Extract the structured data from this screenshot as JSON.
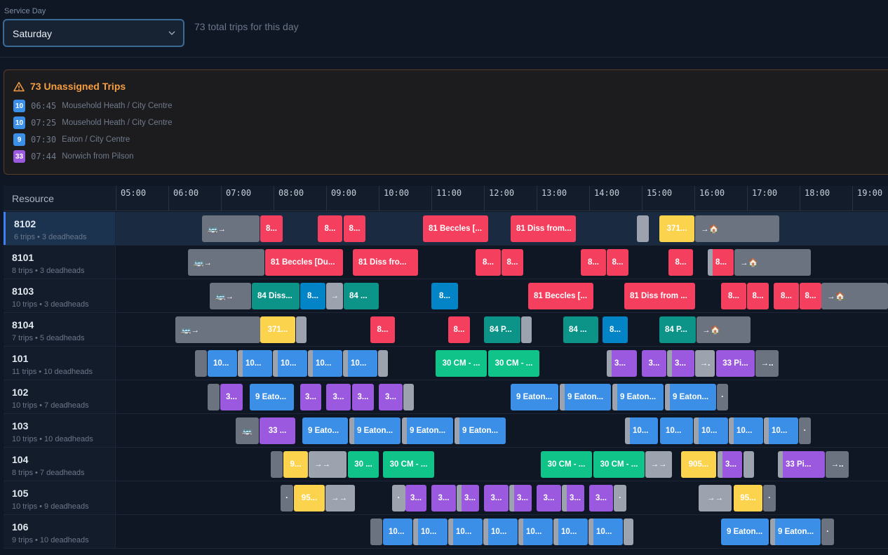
{
  "service_day": {
    "label": "Service Day",
    "value": "Saturday"
  },
  "total_trips_text": "73 total trips for this day",
  "unassigned": {
    "title": "73 Unassigned Trips",
    "trips": [
      {
        "route": "10",
        "color": "#3b8fe6",
        "time": "06:45",
        "name": "Mousehold Heath / City Centre"
      },
      {
        "route": "10",
        "color": "#3b8fe6",
        "time": "07:25",
        "name": "Mousehold Heath / City Centre"
      },
      {
        "route": "9",
        "color": "#3b8fe6",
        "time": "07:30",
        "name": "Eaton / City Centre"
      },
      {
        "route": "33",
        "color": "#9b59e0",
        "time": "07:44",
        "name": "Norwich from Pilson"
      }
    ]
  },
  "grid": {
    "resource_header": "Resource",
    "hours": [
      "05:00",
      "06:00",
      "07:00",
      "08:00",
      "09:00",
      "10:00",
      "11:00",
      "12:00",
      "13:00",
      "14:00",
      "15:00",
      "16:00",
      "17:00",
      "18:00",
      "19:00"
    ],
    "resources": [
      {
        "name": "8102",
        "sub": "6 trips • 3 deadheads"
      },
      {
        "name": "8101",
        "sub": "8 trips • 3 deadheads"
      },
      {
        "name": "8103",
        "sub": "10 trips • 3 deadheads"
      },
      {
        "name": "8104",
        "sub": "7 trips • 5 deadheads"
      },
      {
        "name": "101",
        "sub": "11 trips • 10 deadheads"
      },
      {
        "name": "102",
        "sub": "10 trips • 7 deadheads"
      },
      {
        "name": "103",
        "sub": "10 trips • 10 deadheads"
      },
      {
        "name": "104",
        "sub": "8 trips • 7 deadheads"
      },
      {
        "name": "105",
        "sub": "10 trips • 9 deadheads"
      },
      {
        "name": "106",
        "sub": "9 trips • 10 deadheads"
      }
    ],
    "labels": {
      "beccles_du": "81 Beccles [Du...",
      "beccles": "81 Beccles [...",
      "diss_from": "81 Diss from...",
      "diss_from_dots": "81 Diss fro...",
      "diss_from_long": "81 Diss from ...",
      "diss84": "84 Diss...",
      "e84": "84 ...",
      "e84b": "84 ...",
      "p84": "84 P...",
      "p84b": "84 P...",
      "e8": "8...",
      "e8b": "8...",
      "y371": "371...",
      "y371b": "371...",
      "arrow": "→",
      "depot": "🚌→",
      "home": "→🏠",
      "e10": "10...",
      "cm30": "30 CM - ...",
      "e30": "30 ...",
      "e3": "3...",
      "pi33": "33 Pi...",
      "e33": "33 ...",
      "arr2": "→→",
      "arrdot": "→.",
      "arrdots": "→..",
      "eaton9": "9 Eaton...",
      "eato9": "9 Eato...",
      "e9": "9...",
      "y905": "905...",
      "y95": "95...",
      "dot": "·"
    }
  }
}
